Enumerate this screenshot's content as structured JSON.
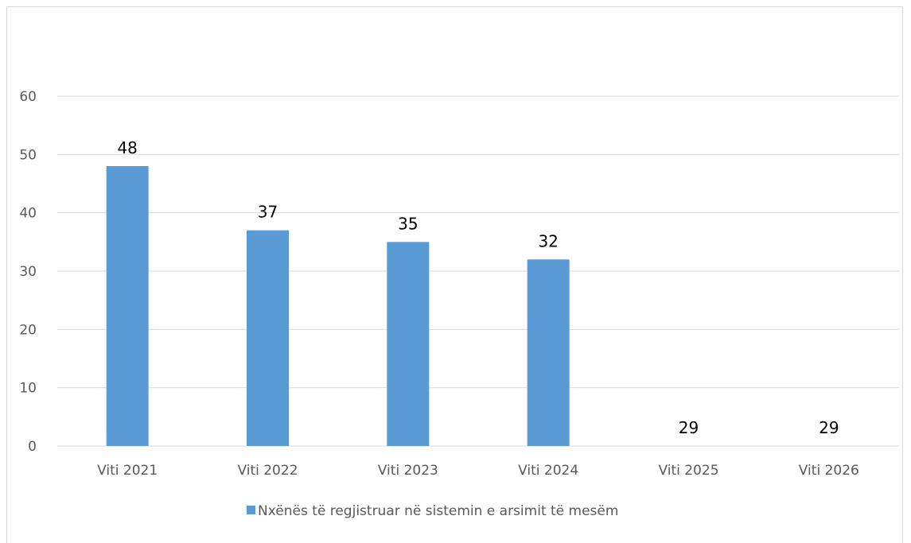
{
  "chart_data": {
    "type": "bar",
    "categories": [
      "Viti 2021",
      "Viti 2022",
      "Viti 2023",
      "Viti 2024",
      "Viti 2025",
      "Viti 2026"
    ],
    "series": [
      {
        "name": "Nxënës të regjistruar në sistemin e arsimit të mesëm",
        "values": [
          48,
          37,
          35,
          32,
          null,
          null
        ],
        "data_labels": [
          "48",
          "37",
          "35",
          "32",
          "29",
          "29"
        ],
        "color": "#5b9bd5"
      }
    ],
    "title": "",
    "xlabel": "",
    "ylabel": "",
    "ylim": [
      0,
      60
    ],
    "yticks": [
      0,
      10,
      20,
      30,
      40,
      50,
      60
    ],
    "grid": true,
    "legend": "bottom"
  }
}
